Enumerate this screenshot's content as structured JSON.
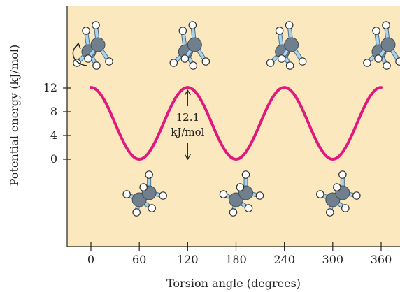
{
  "chart_data": {
    "type": "line",
    "xlabel": "Torsion angle (degrees)",
    "ylabel": "Potential energy (kJ/mol)",
    "xlim": [
      -25,
      370
    ],
    "xticks": [
      0,
      60,
      120,
      180,
      240,
      300,
      360
    ],
    "xtick_labels": [
      "0",
      "60",
      "120",
      "180",
      "240",
      "300",
      "360"
    ],
    "yticks": [
      0,
      4,
      8,
      12
    ],
    "ytick_labels": [
      "0",
      "4",
      "8",
      "12"
    ],
    "grid": false,
    "series": [
      {
        "x": [
          0,
          15,
          30,
          45,
          60,
          75,
          90,
          105,
          120,
          135,
          150,
          165,
          180,
          195,
          210,
          225,
          240,
          255,
          270,
          285,
          300,
          315,
          330,
          345,
          360
        ],
        "y": [
          12.1,
          10.3,
          6.05,
          1.8,
          0,
          1.8,
          6.05,
          10.3,
          12.1,
          10.3,
          6.05,
          1.8,
          0,
          1.8,
          6.05,
          10.3,
          12.1,
          10.3,
          6.05,
          1.8,
          0,
          1.8,
          6.05,
          10.3,
          12.1
        ]
      }
    ],
    "annotation": {
      "text_line1": "12.1",
      "text_line2": "kJ/mol",
      "x": 120,
      "y_top": 12.1,
      "y_bottom": 0
    },
    "colors": {
      "background": "#fbe8bf",
      "curve": "#e0197d",
      "carbon": "#6f7f8e",
      "hydrogen": "#ffffff",
      "bond": "#a9d3ec"
    },
    "molecules": {
      "eclipsed_at_x": [
        0,
        120,
        240,
        360
      ],
      "staggered_at_x": [
        60,
        180,
        300
      ],
      "rotation_arrow_icon": "rotate-arrow-icon"
    }
  }
}
